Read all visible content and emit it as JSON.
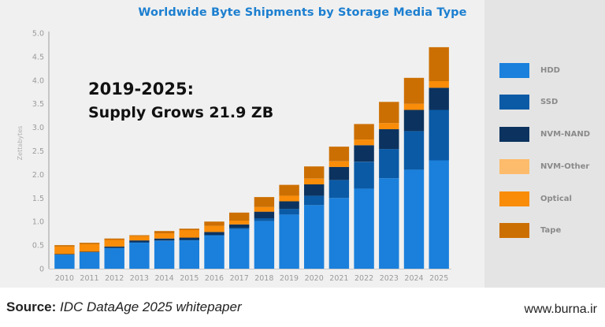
{
  "chart_data": {
    "type": "bar",
    "stacked": true,
    "title": "Worldwide Byte Shipments by Storage Media Type",
    "xlabel": "",
    "ylabel": "Zettabytes",
    "ylim": [
      0,
      5.0
    ],
    "yticks": [
      "0",
      "0.5",
      "1.0",
      "1.5",
      "2.0",
      "2.5",
      "3.0",
      "3.5",
      "4.0",
      "4.5",
      "5.0"
    ],
    "grid": false,
    "legend_position": "right",
    "categories": [
      "2010",
      "2011",
      "2012",
      "2013",
      "2014",
      "2015",
      "2016",
      "2017",
      "2018",
      "2019",
      "2020",
      "2021",
      "2022",
      "2023",
      "2024",
      "2025"
    ],
    "series": [
      {
        "name": "HDD",
        "color": "#1a80dc",
        "values": [
          0.3,
          0.35,
          0.44,
          0.55,
          0.59,
          0.6,
          0.7,
          0.84,
          1.01,
          1.15,
          1.35,
          1.5,
          1.7,
          1.92,
          2.1,
          2.3
        ]
      },
      {
        "name": "SSD",
        "color": "#0a5aa6",
        "values": [
          0.0,
          0.0,
          0.0,
          0.01,
          0.01,
          0.01,
          0.02,
          0.03,
          0.06,
          0.12,
          0.2,
          0.38,
          0.57,
          0.62,
          0.82,
          1.07
        ]
      },
      {
        "name": "NVM-NAND",
        "color": "#0c335f",
        "values": [
          0.01,
          0.01,
          0.03,
          0.04,
          0.04,
          0.05,
          0.06,
          0.07,
          0.14,
          0.16,
          0.24,
          0.28,
          0.35,
          0.42,
          0.45,
          0.47
        ]
      },
      {
        "name": "NVM-Other",
        "color": "#fcbc6c",
        "values": [
          0.0,
          0.0,
          0.0,
          0.0,
          0.0,
          0.0,
          0.0,
          0.0,
          0.0,
          0.0,
          0.0,
          0.0,
          0.0,
          0.0,
          0.0,
          0.0
        ]
      },
      {
        "name": "Optical",
        "color": "#f98c08",
        "values": [
          0.16,
          0.16,
          0.14,
          0.09,
          0.11,
          0.16,
          0.13,
          0.08,
          0.1,
          0.12,
          0.12,
          0.12,
          0.12,
          0.13,
          0.13,
          0.14
        ]
      },
      {
        "name": "Tape",
        "color": "#cc6f02",
        "values": [
          0.03,
          0.03,
          0.03,
          0.02,
          0.05,
          0.03,
          0.09,
          0.17,
          0.21,
          0.23,
          0.26,
          0.31,
          0.33,
          0.45,
          0.55,
          0.72
        ]
      }
    ],
    "annotations": [
      "2019-2025:",
      "Supply Grows 21.9 ZB"
    ]
  },
  "annotation": {
    "line1": "2019-2025:",
    "line2": "Supply Grows 21.9 ZB"
  },
  "legend": [
    {
      "label": "HDD",
      "color": "#1a80dc"
    },
    {
      "label": "SSD",
      "color": "#0a5aa6"
    },
    {
      "label": "NVM-NAND",
      "color": "#0c335f"
    },
    {
      "label": "NVM-Other",
      "color": "#fcbc6c"
    },
    {
      "label": "Optical",
      "color": "#f98c08"
    },
    {
      "label": "Tape",
      "color": "#cc6f02"
    }
  ],
  "footer": {
    "source_label": "Source:",
    "source_text": "IDC DataAge 2025 whitepaper",
    "website": "www.burna.ir"
  }
}
